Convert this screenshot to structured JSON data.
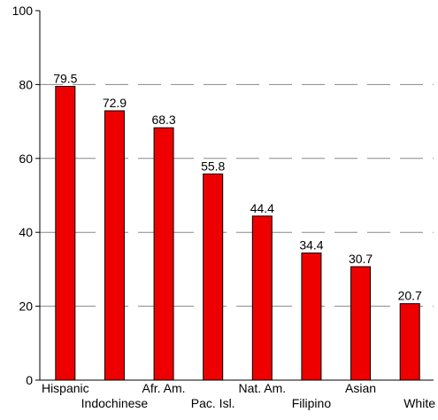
{
  "chart_data": {
    "type": "bar",
    "title": "",
    "xlabel": "",
    "ylabel": "",
    "ylim": [
      0,
      100
    ],
    "yticks": [
      0,
      20,
      40,
      60,
      80,
      100
    ],
    "grid": "horizontal-dashed",
    "bar_color": "#ee0000",
    "categories": [
      "Hispanic",
      "Indochinese",
      "Afr. Am.",
      "Pac. Isl.",
      "Nat. Am.",
      "Filipino",
      "Asian",
      "White"
    ],
    "values": [
      79.5,
      72.9,
      68.3,
      55.8,
      44.4,
      34.4,
      30.7,
      20.7
    ],
    "value_labels": [
      "79.5",
      "72.9",
      "68.3",
      "55.8",
      "44.4",
      "34.4",
      "30.7",
      "20.7"
    ]
  }
}
